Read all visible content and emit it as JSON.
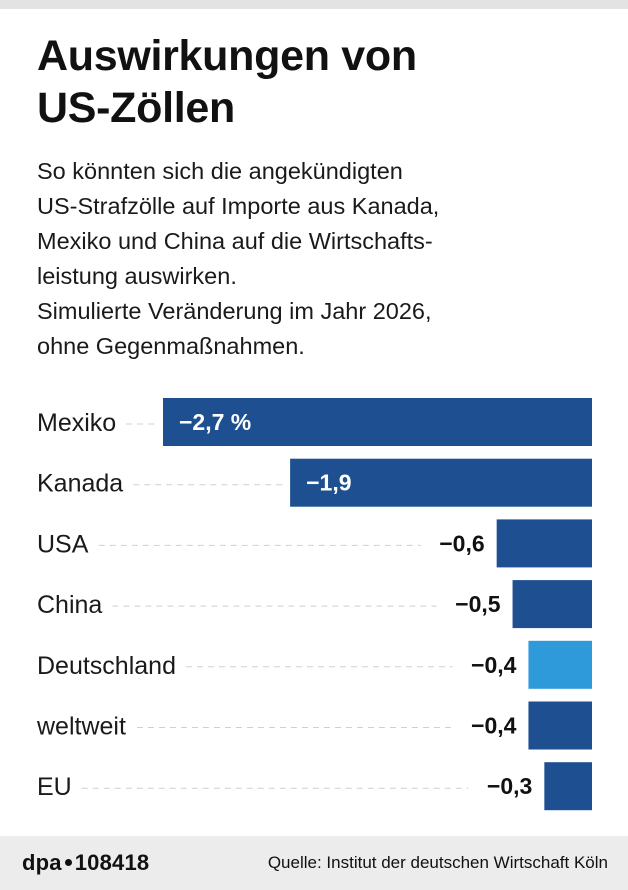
{
  "chart_data": {
    "type": "bar",
    "orientation": "horizontal",
    "title": "Auswirkungen von US-Zöllen",
    "subtitle_lines": [
      "So könnten sich die angekündigten",
      "US-Strafzölle auf Importe aus Kanada,",
      "Mexiko und China auf die Wirtschafts-",
      "leistung auswirken.",
      "Simulierte Veränderung im Jahr 2026,",
      "ohne Gegenmaßnahmen."
    ],
    "categories": [
      "Mexiko",
      "Kanada",
      "USA",
      "China",
      "Deutschland",
      "weltweit",
      "EU"
    ],
    "values": [
      -2.7,
      -1.9,
      -0.6,
      -0.5,
      -0.4,
      -0.4,
      -0.3
    ],
    "value_labels": [
      "−2,7 %",
      "−1,9",
      "−0,6",
      "−0,5",
      "−0,4",
      "−0,4",
      "−0,3"
    ],
    "colors": [
      "#1d4f91",
      "#1d4f91",
      "#1d4f91",
      "#1d4f91",
      "#2e9ad9",
      "#1d4f91",
      "#1d4f91"
    ],
    "xlim": [
      -2.7,
      0
    ],
    "unit": "%"
  },
  "footer": {
    "brand_left": "dpa",
    "brand_number": "108418",
    "source": "Quelle: Institut der deutschen Wirtschaft Köln"
  }
}
